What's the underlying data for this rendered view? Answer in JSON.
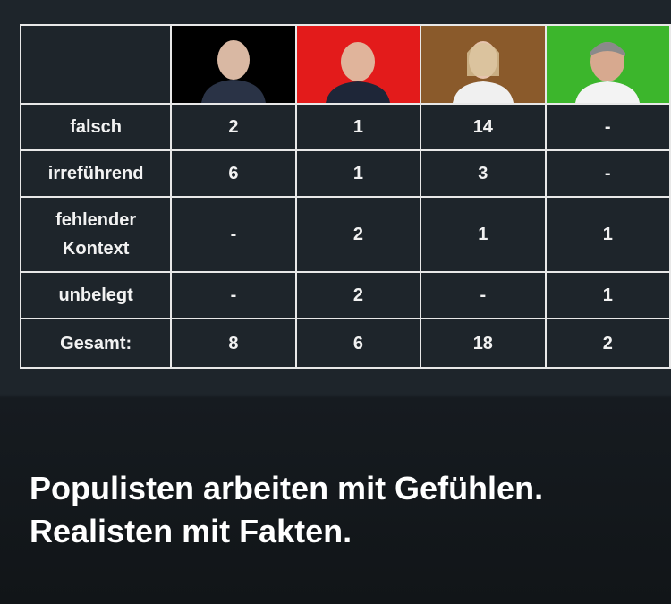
{
  "table": {
    "rows": [
      [
        "falsch",
        "2",
        "1",
        "14",
        "-"
      ],
      [
        "irreführend",
        "6",
        "1",
        "3",
        "-"
      ],
      [
        "fehlender Kontext",
        "-",
        "2",
        "1",
        "1"
      ],
      [
        "unbelegt",
        "-",
        "2",
        "-",
        "1"
      ],
      [
        "Gesamt:",
        "8",
        "6",
        "18",
        "2"
      ]
    ]
  },
  "caption": [
    "Populisten arbeiten mit Gefühlen.",
    "Realisten mit Fakten."
  ]
}
